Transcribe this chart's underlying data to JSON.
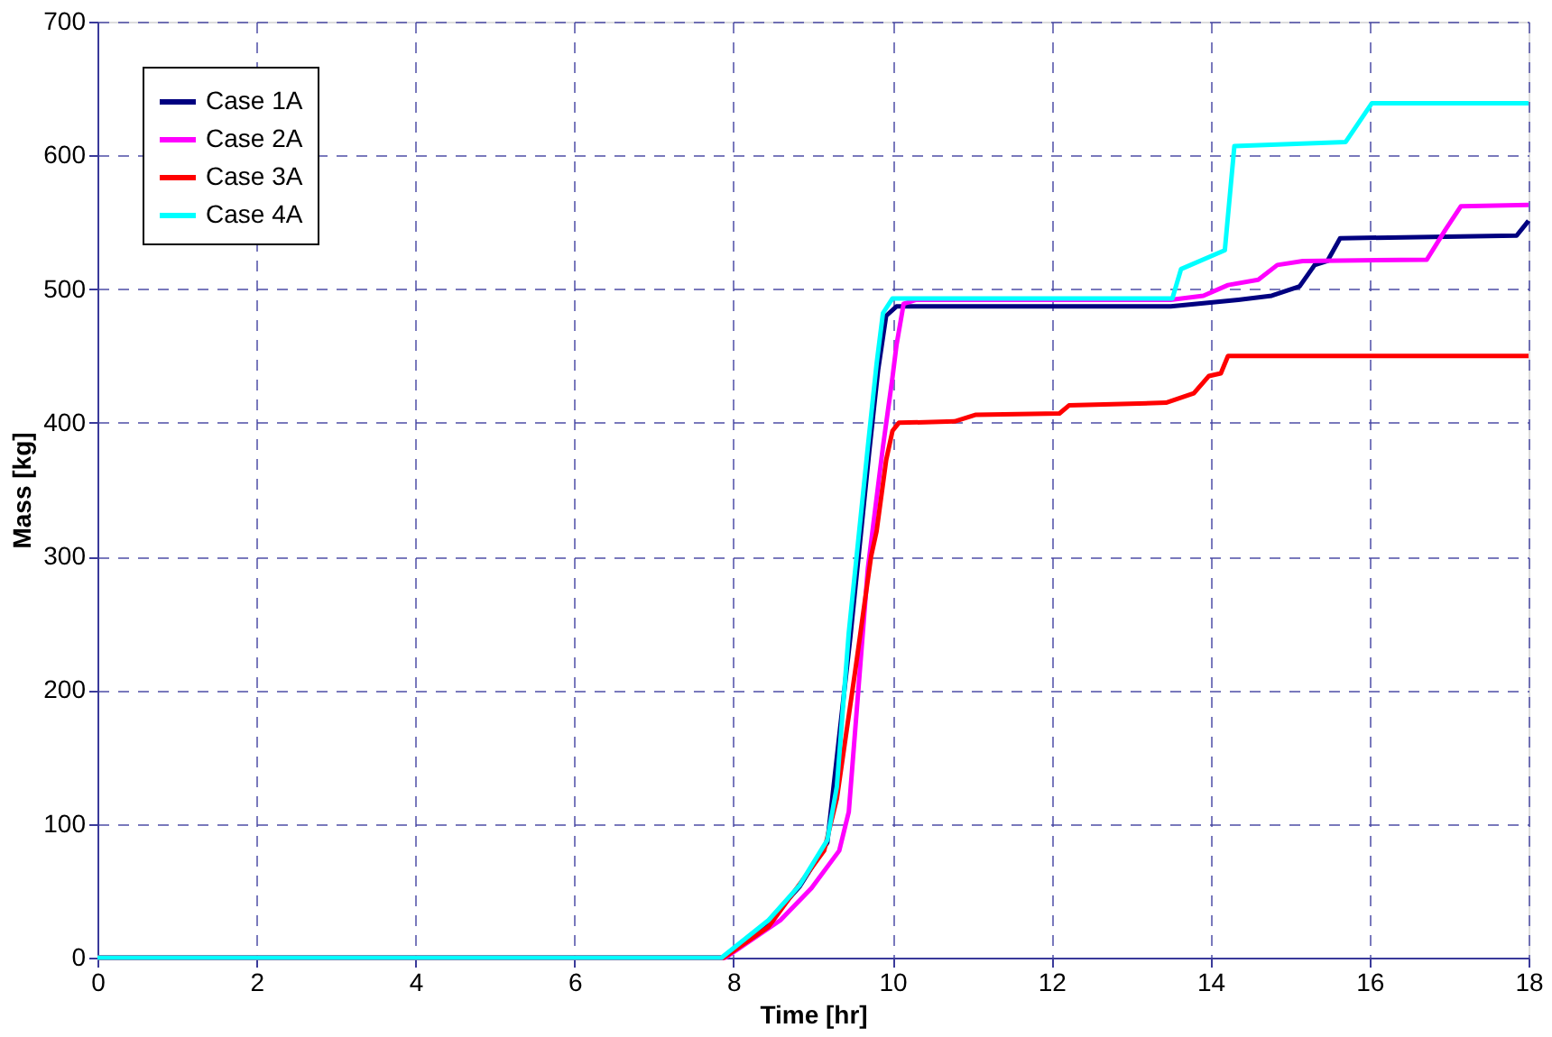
{
  "chart_data": {
    "type": "line",
    "xlabel": "Time [hr]",
    "ylabel": "Mass [kg]",
    "xlim": [
      0,
      18
    ],
    "ylim": [
      0,
      700
    ],
    "xticks": [
      0,
      2,
      4,
      6,
      8,
      10,
      12,
      14,
      16,
      18
    ],
    "yticks": [
      0,
      100,
      200,
      300,
      400,
      500,
      600,
      700
    ],
    "grid": true,
    "legend": "top left",
    "line_style": "solid",
    "marker": "none",
    "series": [
      {
        "name": "Case 1A",
        "color": "#000080",
        "x": [
          0,
          7.87,
          8.44,
          8.83,
          9.18,
          9.47,
          9.71,
          9.82,
          9.92,
          10.05,
          13.5,
          14.35,
          14.77,
          15.12,
          15.31,
          15.47,
          15.63,
          17.85,
          18
        ],
        "values": [
          0,
          0,
          27,
          53,
          86,
          240,
          380,
          440,
          480,
          487,
          487,
          492,
          495,
          502,
          518,
          521,
          538,
          540,
          551
        ]
      },
      {
        "name": "Case 2A",
        "color": "#ff00ff",
        "x": [
          0,
          7.9,
          8.59,
          8.98,
          9.33,
          9.45,
          9.57,
          9.69,
          9.88,
          10.0,
          10.05,
          10.14,
          10.3,
          13.5,
          13.91,
          14.22,
          14.6,
          14.84,
          15.16,
          16.72,
          16.95,
          17.15,
          18
        ],
        "values": [
          0,
          0,
          28,
          52,
          80,
          109,
          200,
          291,
          382,
          434,
          458,
          489,
          492,
          492,
          495,
          503,
          507,
          518,
          521,
          522,
          544,
          562,
          563
        ]
      },
      {
        "name": "Case 3A",
        "color": "#ff0000",
        "x": [
          0,
          7.88,
          8.44,
          9.14,
          9.3,
          9.53,
          9.73,
          9.8,
          9.92,
          10.0,
          10.08,
          10.78,
          11.05,
          12.1,
          12.22,
          13.44,
          13.79,
          13.98,
          14.13,
          14.22,
          18
        ],
        "values": [
          0,
          0,
          23,
          80,
          119,
          214,
          300,
          319,
          372,
          394,
          400,
          401,
          406,
          407,
          413,
          415,
          422,
          435,
          437,
          450,
          450
        ]
      },
      {
        "name": "Case 4A",
        "color": "#00ffff",
        "x": [
          0,
          7.85,
          8.44,
          8.83,
          9.18,
          9.3,
          9.45,
          9.69,
          9.8,
          9.88,
          10.0,
          13.52,
          13.63,
          14.18,
          14.3,
          15.7,
          16.03,
          18
        ],
        "values": [
          0,
          0,
          28,
          54,
          88,
          128,
          243,
          382,
          444,
          482,
          493,
          493,
          515,
          529,
          607,
          610,
          639,
          639
        ]
      }
    ]
  }
}
